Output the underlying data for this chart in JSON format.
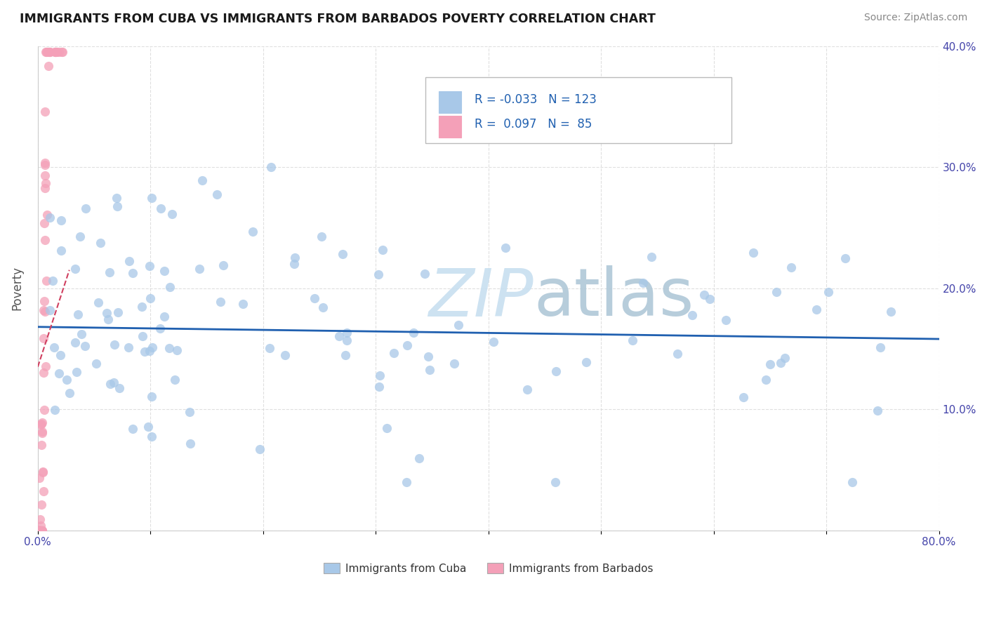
{
  "title": "IMMIGRANTS FROM CUBA VS IMMIGRANTS FROM BARBADOS POVERTY CORRELATION CHART",
  "source": "Source: ZipAtlas.com",
  "ylabel": "Poverty",
  "xlim": [
    0.0,
    0.8
  ],
  "ylim": [
    0.0,
    0.4
  ],
  "xtick_vals": [
    0.0,
    0.1,
    0.2,
    0.3,
    0.4,
    0.5,
    0.6,
    0.7,
    0.8
  ],
  "xtick_labels": [
    "0.0%",
    "",
    "",
    "",
    "",
    "",
    "",
    "",
    "80.0%"
  ],
  "ytick_vals": [
    0.0,
    0.1,
    0.2,
    0.3,
    0.4
  ],
  "ytick_right_labels": [
    "",
    "10.0%",
    "20.0%",
    "30.0%",
    "40.0%"
  ],
  "cuba_color": "#a8c8e8",
  "barbados_color": "#f4a0b8",
  "cuba_R": -0.033,
  "cuba_N": 123,
  "barbados_R": 0.097,
  "barbados_N": 85,
  "cuba_line_color": "#2060b0",
  "barbados_line_color": "#d04060",
  "legend_label_cuba": "Immigrants from Cuba",
  "legend_label_barbados": "Immigrants from Barbados",
  "watermark_color": "#c8dff0",
  "grid_color": "#d8d8d8",
  "title_color": "#1a1a1a",
  "source_color": "#888888",
  "axis_label_color": "#4444aa",
  "tick_color": "#4444aa"
}
